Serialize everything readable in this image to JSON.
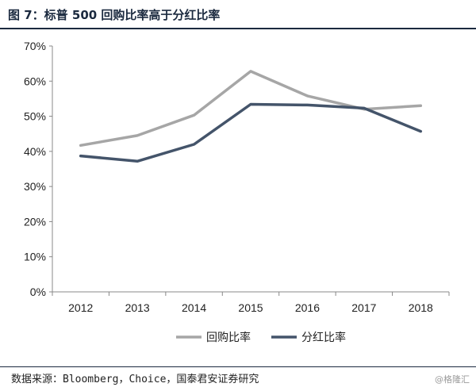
{
  "figure": {
    "title": "图 7：标普 500 回购比率高于分红比率",
    "source": "数据来源：Bloomberg，Choice，国泰君安证券研究",
    "watermark": "@格隆汇"
  },
  "colors": {
    "buyback": "#a6a6a6",
    "dividend": "#44546a",
    "axis": "#888888",
    "title": "#1b2a3f"
  },
  "chart_data": {
    "type": "line",
    "categories": [
      "2012",
      "2013",
      "2014",
      "2015",
      "2016",
      "2017",
      "2018"
    ],
    "y_ticks": [
      "0%",
      "10%",
      "20%",
      "30%",
      "40%",
      "50%",
      "60%",
      "70%"
    ],
    "ylim": [
      0,
      70
    ],
    "grid": false,
    "legend_position": "bottom",
    "series": [
      {
        "name": "回购比率",
        "key": "buyback",
        "values": [
          41.7,
          44.5,
          50.3,
          62.8,
          55.8,
          52.0,
          53.0
        ]
      },
      {
        "name": "分红比率",
        "key": "dividend",
        "values": [
          38.7,
          37.2,
          42.0,
          53.4,
          53.2,
          52.3,
          45.7
        ]
      }
    ]
  }
}
